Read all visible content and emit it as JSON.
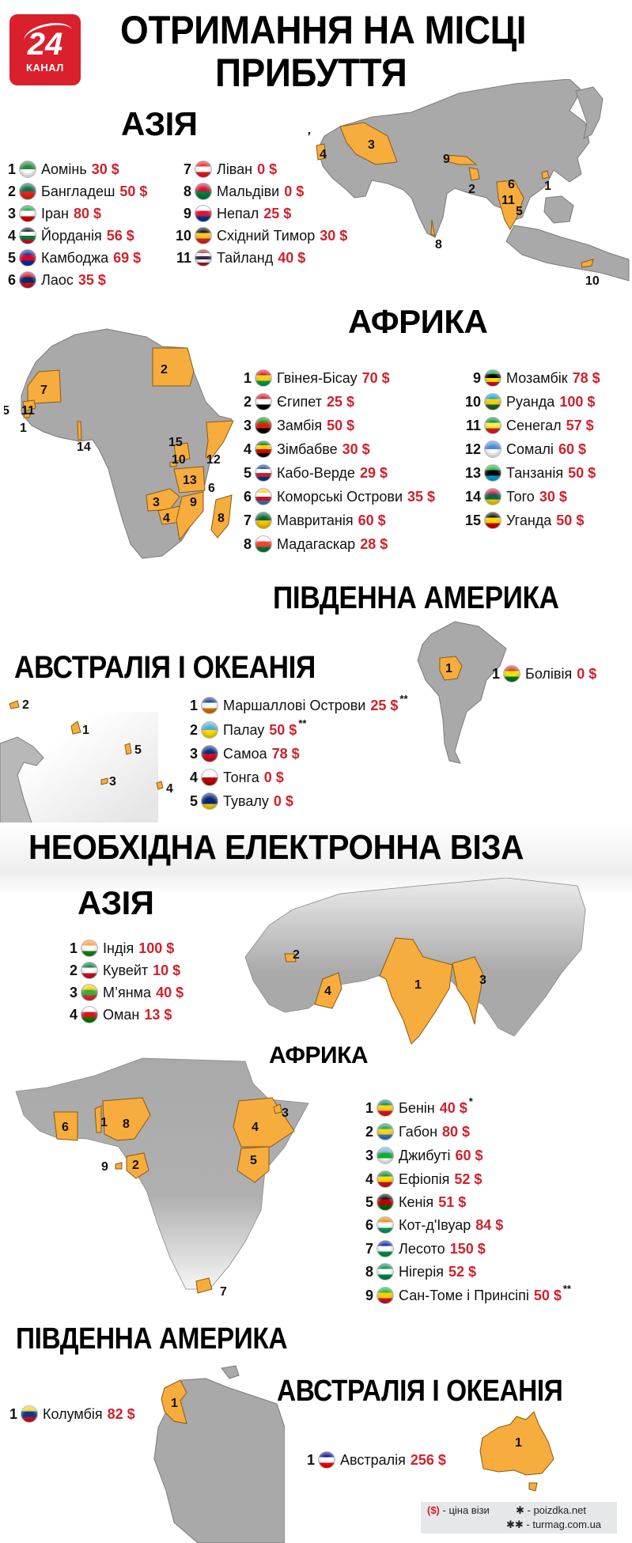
{
  "header": {
    "logo": {
      "number": "24",
      "label": "КАНАЛ"
    },
    "title_line1": "ОТРИМАННЯ НА МІСЦІ",
    "title_line2": "ПРИБУТТЯ"
  },
  "on_arrival": {
    "asia": {
      "heading": "АЗІЯ",
      "items": [
        {
          "n": "1",
          "name": "Аомінь",
          "price": "30 $",
          "flag": [
            "#1f8a3b",
            "#ffffff"
          ]
        },
        {
          "n": "2",
          "name": "Бангладеш",
          "price": "50 $",
          "flag": [
            "#00704a",
            "#e1261c"
          ]
        },
        {
          "n": "3",
          "name": "Іран",
          "price": "80 $",
          "flag": [
            "#239f40",
            "#ffffff",
            "#da0000"
          ]
        },
        {
          "n": "4",
          "name": "Йорданія",
          "price": "56 $",
          "flag": [
            "#000000",
            "#ffffff",
            "#007a3d",
            "#ce1126"
          ]
        },
        {
          "n": "5",
          "name": "Камбоджа",
          "price": "69 $",
          "flag": [
            "#032ea1",
            "#e00025",
            "#032ea1"
          ]
        },
        {
          "n": "6",
          "name": "Лаос",
          "price": "35 $",
          "flag": [
            "#ce1126",
            "#002868",
            "#ce1126"
          ]
        },
        {
          "n": "7",
          "name": "Ліван",
          "price": "0 $",
          "flag": [
            "#ee161f",
            "#ffffff",
            "#ee161f"
          ]
        },
        {
          "n": "8",
          "name": "Мальдіви",
          "price": "0 $",
          "flag": [
            "#d21034",
            "#007e3a"
          ]
        },
        {
          "n": "9",
          "name": "Непал",
          "price": "25 $",
          "flag": [
            "#ffffff",
            "#dc143c",
            "#003893"
          ]
        },
        {
          "n": "10",
          "name": "Східний Тимор",
          "price": "30 $",
          "flag": [
            "#000000",
            "#ffc726",
            "#dc241f"
          ]
        },
        {
          "n": "11",
          "name": "Тайланд",
          "price": "40 $",
          "flag": [
            "#a51931",
            "#f4f5f8",
            "#2d2a4a",
            "#f4f5f8",
            "#a51931"
          ]
        }
      ]
    },
    "africa": {
      "heading": "АФРИКА",
      "items": [
        {
          "n": "1",
          "name": "Гвінея-Бісау",
          "price": "70 $",
          "flag": [
            "#ce1126",
            "#fcd116",
            "#009e49"
          ]
        },
        {
          "n": "2",
          "name": "Єгипет",
          "price": "25 $",
          "flag": [
            "#ce1126",
            "#ffffff",
            "#000000"
          ]
        },
        {
          "n": "3",
          "name": "Замбія",
          "price": "50 $",
          "flag": [
            "#198a00",
            "#de2010",
            "#000000"
          ]
        },
        {
          "n": "4",
          "name": "Зімбабве",
          "price": "30 $",
          "flag": [
            "#006400",
            "#ffd200",
            "#d40000",
            "#000000"
          ]
        },
        {
          "n": "5",
          "name": "Кабо-Верде",
          "price": "29 $",
          "flag": [
            "#003893",
            "#ffffff",
            "#cf2027",
            "#003893"
          ]
        },
        {
          "n": "6",
          "name": "Коморські Острови",
          "price": "35 $",
          "flag": [
            "#ffc61e",
            "#ffffff",
            "#ce1126",
            "#3a75c4"
          ]
        },
        {
          "n": "7",
          "name": "Мавританія",
          "price": "60 $",
          "flag": [
            "#006233",
            "#ffc400"
          ]
        },
        {
          "n": "8",
          "name": "Мадагаскар",
          "price": "28 $",
          "flag": [
            "#ffffff",
            "#fc3d32",
            "#007e3a"
          ]
        },
        {
          "n": "9",
          "name": "Мозамбік",
          "price": "78 $",
          "flag": [
            "#009a44",
            "#000000",
            "#fce100",
            "#d21034"
          ]
        },
        {
          "n": "10",
          "name": "Руанда",
          "price": "100 $",
          "flag": [
            "#00a1de",
            "#fad201",
            "#20603d"
          ]
        },
        {
          "n": "11",
          "name": "Сенегал",
          "price": "57 $",
          "flag": [
            "#00853f",
            "#fdef42",
            "#e31b23"
          ]
        },
        {
          "n": "12",
          "name": "Сомалі",
          "price": "60 $",
          "flag": [
            "#4189dd",
            "#ffffff"
          ]
        },
        {
          "n": "13",
          "name": "Танзанія",
          "price": "50 $",
          "flag": [
            "#1eb53a",
            "#000000",
            "#00a3dd"
          ]
        },
        {
          "n": "14",
          "name": "Того",
          "price": "30 $",
          "flag": [
            "#d21034",
            "#006a4e",
            "#ffce00"
          ]
        },
        {
          "n": "15",
          "name": "Уганда",
          "price": "50 $",
          "flag": [
            "#000000",
            "#fcdc04",
            "#d90000"
          ]
        }
      ]
    },
    "south_america": {
      "heading": "ПІВДЕННА  АМЕРИКА",
      "items": [
        {
          "n": "1",
          "name": "Болівія",
          "price": "0 $",
          "flag": [
            "#d52b1e",
            "#f9e300",
            "#007934"
          ]
        }
      ]
    },
    "oceania": {
      "heading": "АВСТРАЛІЯ І ОКЕАНІЯ",
      "items": [
        {
          "n": "1",
          "name": "Маршаллові Острови",
          "price": "25 $",
          "note": "**",
          "flag": [
            "#003893",
            "#ffffff",
            "#dd7500"
          ]
        },
        {
          "n": "2",
          "name": "Палау",
          "price": "50 $",
          "note": "**",
          "flag": [
            "#4aadd6",
            "#ffde00"
          ]
        },
        {
          "n": "3",
          "name": "Самоа",
          "price": "78 $",
          "flag": [
            "#002b7f",
            "#ce1126"
          ]
        },
        {
          "n": "4",
          "name": "Тонга",
          "price": "0 $",
          "flag": [
            "#ffffff",
            "#c10000"
          ]
        },
        {
          "n": "5",
          "name": "Тувалу",
          "price": "0 $",
          "flag": [
            "#012169",
            "#00247d",
            "#ffce00"
          ]
        }
      ]
    }
  },
  "evisa": {
    "heading": "НЕОБХІДНА ЕЛЕКТРОННА ВІЗА",
    "asia": {
      "heading": "АЗІЯ",
      "items": [
        {
          "n": "1",
          "name": "Індія",
          "price": "100 $",
          "flag": [
            "#ff9933",
            "#ffffff",
            "#138808"
          ]
        },
        {
          "n": "2",
          "name": "Кувейт",
          "price": "10 $",
          "flag": [
            "#007a3d",
            "#ffffff",
            "#ce1126"
          ]
        },
        {
          "n": "3",
          "name": "М’янма",
          "price": "40 $",
          "flag": [
            "#fecb00",
            "#34b233",
            "#ea2839"
          ]
        },
        {
          "n": "4",
          "name": "Оман",
          "price": "13 $",
          "flag": [
            "#ffffff",
            "#db161b",
            "#008000"
          ]
        }
      ]
    },
    "africa": {
      "heading": "АФРИКА",
      "items": [
        {
          "n": "1",
          "name": "Бенін",
          "price": "40 $",
          "note": "*",
          "flag": [
            "#008751",
            "#fcd116",
            "#e8112d"
          ]
        },
        {
          "n": "2",
          "name": "Габон",
          "price": "80 $",
          "flag": [
            "#009e60",
            "#fcd116",
            "#3a75c4"
          ]
        },
        {
          "n": "3",
          "name": "Джибуті",
          "price": "60 $",
          "flag": [
            "#6ab2e7",
            "#12ad2b",
            "#ffffff"
          ]
        },
        {
          "n": "4",
          "name": "Ефіопія",
          "price": "52 $",
          "flag": [
            "#078930",
            "#fcdd09",
            "#da121a"
          ]
        },
        {
          "n": "5",
          "name": "Кенія",
          "price": "51 $",
          "flag": [
            "#000000",
            "#bb0000",
            "#006600"
          ]
        },
        {
          "n": "6",
          "name": "Кот-д'Івуар",
          "price": "84 $",
          "flag": [
            "#f77f00",
            "#ffffff",
            "#009e60"
          ]
        },
        {
          "n": "7",
          "name": "Лесото",
          "price": "150 $",
          "flag": [
            "#00209f",
            "#ffffff",
            "#009543"
          ]
        },
        {
          "n": "8",
          "name": "Нігерія",
          "price": "52 $",
          "flag": [
            "#008751",
            "#ffffff",
            "#008751"
          ]
        },
        {
          "n": "9",
          "name": "Сан-Томе і Принсіпі",
          "price": "50 $",
          "note": "**",
          "flag": [
            "#12ad2b",
            "#ffce00",
            "#d21034"
          ]
        }
      ]
    },
    "south_america": {
      "heading": "ПІВДЕННА АМЕРИКА",
      "items": [
        {
          "n": "1",
          "name": "Колумбія",
          "price": "82 $",
          "flag": [
            "#fcd116",
            "#003893",
            "#ce1126"
          ]
        }
      ]
    },
    "oceania": {
      "heading": "АВСТРАЛІЯ І ОКЕАНІЯ",
      "items": [
        {
          "n": "1",
          "name": "Австралія",
          "price": "256 $",
          "flag": [
            "#00008b",
            "#ffffff",
            "#ff0000"
          ]
        }
      ]
    }
  },
  "legend": {
    "price_symbol": "($)",
    "price_label": " - ціна візи",
    "star1": "✱ - poizdka.net",
    "star2": "✱✱ - turmag.com.ua"
  },
  "colors": {
    "accent_red": "#d0212d",
    "highlight_orange": "#f7ac3e",
    "land_gray": "#a9a9a9",
    "legend_bg": "#e6e7e8"
  },
  "map_labels": {
    "asia1": [
      "1",
      "2",
      "3",
      "4",
      "5",
      "6",
      "7",
      "8",
      "9",
      "10",
      "11"
    ],
    "africa1": [
      "1",
      "2",
      "3",
      "4",
      "5",
      "6",
      "7",
      "8",
      "9",
      "10",
      "11",
      "12",
      "13",
      "14",
      "15"
    ],
    "sa1": [
      "1"
    ],
    "oceania1": [
      "1",
      "2",
      "3",
      "4",
      "5"
    ],
    "asia2": [
      "1",
      "2",
      "3",
      "4"
    ],
    "africa2": [
      "1",
      "2",
      "3",
      "4",
      "5",
      "6",
      "7",
      "8",
      "9"
    ],
    "sa2": [
      "1"
    ],
    "au2": [
      "1"
    ]
  }
}
